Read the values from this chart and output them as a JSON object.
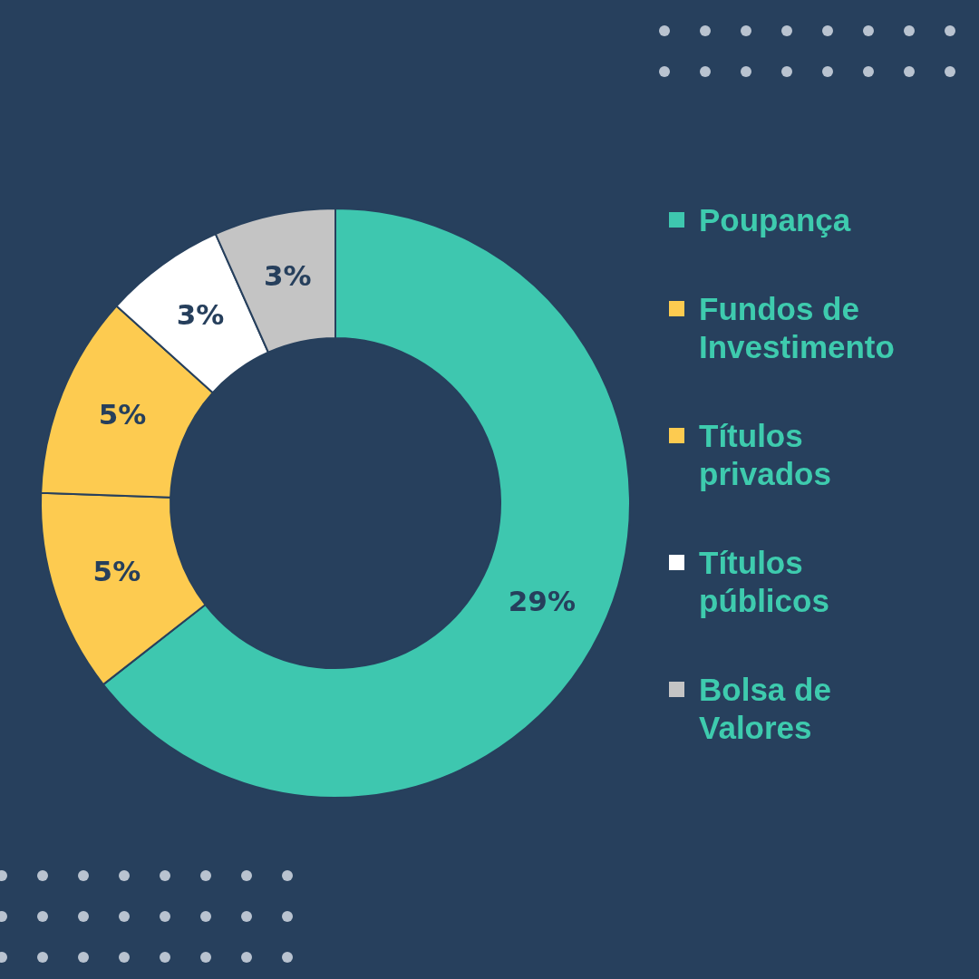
{
  "chart_data": {
    "type": "donut",
    "categories": [
      "Poupança",
      "Fundos de Investimento",
      "Títulos privados",
      "Títulos públicos",
      "Bolsa de Valores"
    ],
    "values": [
      29,
      5,
      5,
      3,
      3
    ],
    "colors": [
      "#3ec7af",
      "#fdcb50",
      "#fdcb50",
      "#ffffff",
      "#c4c4c4"
    ],
    "value_labels": [
      "29%",
      "5%",
      "5%",
      "3%",
      "3%"
    ],
    "legend": "right"
  }
}
